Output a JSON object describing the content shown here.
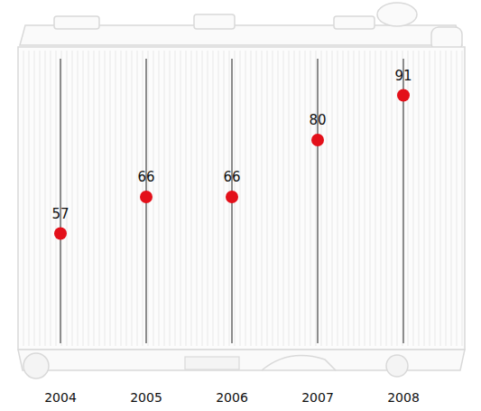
{
  "chart_data": {
    "type": "scatter",
    "categories": [
      "2004",
      "2005",
      "2006",
      "2007",
      "2008"
    ],
    "values": [
      57,
      66,
      66,
      80,
      91
    ],
    "color": "#e3101a",
    "ylim": [
      30,
      100
    ],
    "data_labels": true,
    "tick_labels": "x",
    "marker": "circle"
  }
}
